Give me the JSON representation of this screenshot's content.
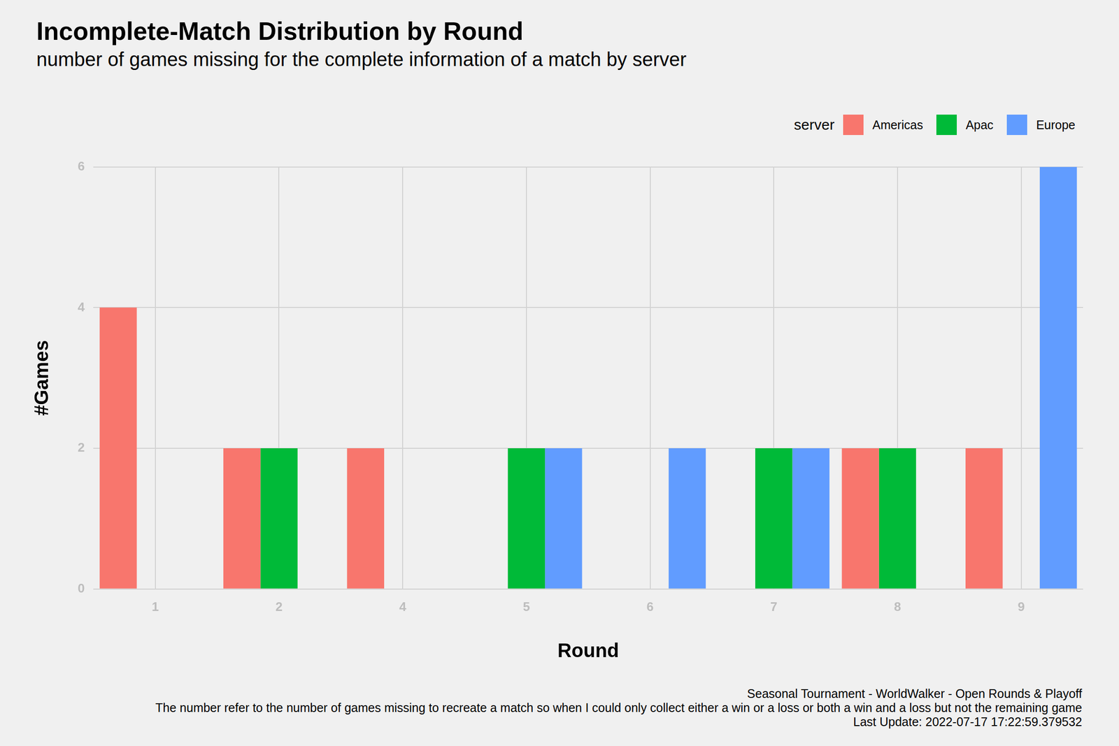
{
  "chart_data": {
    "type": "bar",
    "title": "Incomplete-Match Distribution by Round",
    "subtitle": "number of games missing for the complete information of a match by server",
    "x_label": "Round",
    "y_label": "#Games",
    "legend_title": "server",
    "caption": [
      "Seasonal Tournament - WorldWalker - Open Rounds & Playoff",
      "The number refer to the number of games missing to recreate a match so when I could only collect either a win or a loss or both a win and a loss but not the remaining game",
      "Last Update: 2022-07-17 17:22:59.379532"
    ],
    "categories": [
      "1",
      "2",
      "4",
      "5",
      "6",
      "7",
      "8",
      "9"
    ],
    "series": [
      {
        "name": "Americas",
        "color": "#F8766D",
        "values": [
          4,
          2,
          2,
          null,
          null,
          null,
          2,
          2
        ]
      },
      {
        "name": "Apac",
        "color": "#00BA38",
        "values": [
          null,
          2,
          null,
          2,
          null,
          2,
          2,
          null
        ]
      },
      {
        "name": "Europe",
        "color": "#619CFF",
        "values": [
          null,
          null,
          null,
          2,
          2,
          2,
          null,
          6
        ]
      }
    ],
    "ylim": [
      0,
      6
    ],
    "yticks": [
      0,
      2,
      4,
      6
    ],
    "grid": true,
    "legend": "top-right"
  }
}
